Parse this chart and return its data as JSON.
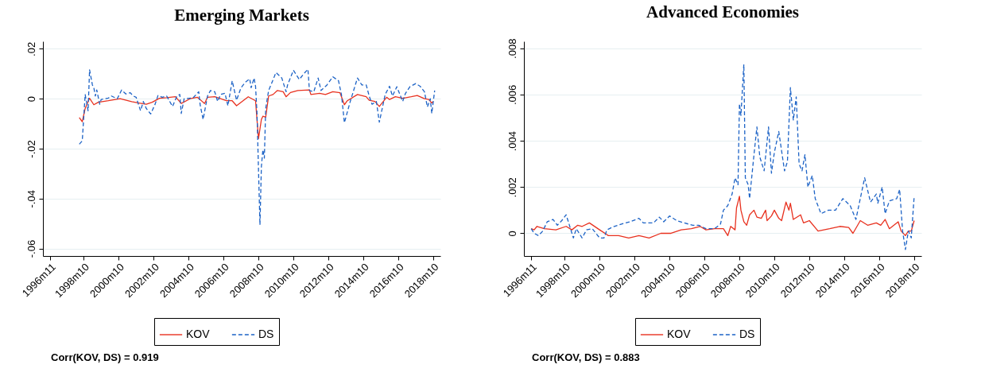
{
  "chart_data": [
    {
      "type": "line",
      "title": "Emerging Markets",
      "grid": "y",
      "legend": "bottom",
      "annotations": [
        "Corr(KOV, DS) = 0.919"
      ],
      "xlim": [
        "1996-06",
        "2019-03"
      ],
      "xticks": [
        {
          "value": "1996-11",
          "label": "1996m11"
        },
        {
          "value": "1998-10",
          "label": "1998m10"
        },
        {
          "value": "2000-10",
          "label": "2000m10"
        },
        {
          "value": "2002-10",
          "label": "2002m10"
        },
        {
          "value": "2004-10",
          "label": "2004m10"
        },
        {
          "value": "2006-10",
          "label": "2006m10"
        },
        {
          "value": "2008-10",
          "label": "2008m10"
        },
        {
          "value": "2010-10",
          "label": "2010m10"
        },
        {
          "value": "2012-10",
          "label": "2012m10"
        },
        {
          "value": "2014-10",
          "label": "2014m10"
        },
        {
          "value": "2016-10",
          "label": "2016m10"
        },
        {
          "value": "2018-10",
          "label": "2018m10"
        }
      ],
      "ylim": [
        -0.063,
        0.023
      ],
      "yticks": [
        {
          "value": -0.06,
          "label": "-.06"
        },
        {
          "value": -0.04,
          "label": "-.04"
        },
        {
          "value": -0.02,
          "label": "-.02"
        },
        0,
        {
          "value": 0.02,
          "label": ".02"
        }
      ],
      "series": [
        {
          "name": "KOV",
          "color": "#e8311f",
          "line_style": "solid",
          "x": [
            "1998-07",
            "1998-09",
            "1998-11",
            "1999-02",
            "1999-05",
            "1999-08",
            "2000-03",
            "2000-11",
            "2001-07",
            "2001-12",
            "2002-05",
            "2002-09",
            "2003-02",
            "2003-07",
            "2004-01",
            "2004-05",
            "2004-11",
            "2005-04",
            "2005-09",
            "2005-11",
            "2006-04",
            "2006-12",
            "2007-04",
            "2007-07",
            "2008-03",
            "2008-08",
            "2008-10",
            "2008-12",
            "2009-01",
            "2009-03",
            "2009-05",
            "2009-08",
            "2009-11",
            "2010-03",
            "2010-05",
            "2010-08",
            "2011-01",
            "2011-09",
            "2011-10",
            "2012-04",
            "2012-08",
            "2013-01",
            "2013-06",
            "2013-09",
            "2013-11",
            "2014-06",
            "2014-12",
            "2015-02",
            "2015-06",
            "2015-09",
            "2016-02",
            "2016-04",
            "2016-08",
            "2017-01",
            "2017-07",
            "2017-11",
            "2018-04",
            "2018-07",
            "2018-09",
            "2018-10"
          ],
          "values": [
            -0.0075,
            -0.0092,
            -0.0039,
            0.0002,
            -0.0024,
            -0.0014,
            -0.0008,
            0,
            -0.0012,
            -0.0017,
            -0.0022,
            -0.0014,
            0.0002,
            0.0004,
            0.0008,
            -0.0019,
            0,
            0.0006,
            -0.0019,
            0.0006,
            0.0008,
            -0.0008,
            -0.0008,
            -0.0028,
            0.0008,
            -0.0008,
            -0.016,
            -0.0083,
            -0.007,
            -0.0074,
            0.0011,
            0.0017,
            0.0033,
            0.0028,
            0.0008,
            0.0025,
            0.0033,
            0.0035,
            0.0017,
            0.0022,
            0.0017,
            0.0028,
            0.0024,
            -0.0024,
            -0.0008,
            0.0017,
            0.0008,
            -0.0006,
            -0.0011,
            -0.0031,
            0.0006,
            -0.0003,
            0.0008,
            0.0002,
            0.0008,
            0.0013,
            0,
            -0.0003,
            -0.0017,
            -0.0011
          ]
        },
        {
          "name": "DS",
          "color": "#1d63c6",
          "line_style": "dashed",
          "x": [
            "1998-07",
            "1998-09",
            "1998-11",
            "1999-01",
            "1999-02",
            "1999-04",
            "1999-05",
            "1999-06",
            "1999-07",
            "1999-09",
            "1999-10",
            "2000-03",
            "2000-05",
            "2000-09",
            "2000-12",
            "2001-03",
            "2001-06",
            "2001-08",
            "2001-10",
            "2002-01",
            "2002-03",
            "2002-05",
            "2002-08",
            "2002-11",
            "2003-01",
            "2003-04",
            "2003-07",
            "2003-11",
            "2004-02",
            "2004-04",
            "2004-05",
            "2004-07",
            "2005-01",
            "2005-05",
            "2005-06",
            "2005-08",
            "2005-11",
            "2006-01",
            "2006-04",
            "2006-06",
            "2006-08",
            "2006-11",
            "2007-01",
            "2007-04",
            "2007-07",
            "2007-10",
            "2008-01",
            "2008-04",
            "2008-05",
            "2008-07",
            "2008-08",
            "2008-09",
            "2008-11",
            "2008-12",
            "2009-01",
            "2009-02",
            "2009-03",
            "2009-05",
            "2009-07",
            "2009-10",
            "2010-02",
            "2010-05",
            "2010-06",
            "2010-10",
            "2011-02",
            "2011-05",
            "2011-08",
            "2011-09",
            "2011-12",
            "2012-03",
            "2012-05",
            "2012-09",
            "2013-01",
            "2013-05",
            "2013-07",
            "2013-09",
            "2014-01",
            "2014-06",
            "2014-09",
            "2014-12",
            "2015-02",
            "2015-04",
            "2015-07",
            "2015-09",
            "2016-01",
            "2016-04",
            "2016-06",
            "2016-09",
            "2017-01",
            "2017-03",
            "2017-06",
            "2017-10",
            "2018-01",
            "2018-04",
            "2018-06",
            "2018-08",
            "2018-09",
            "2018-11"
          ],
          "values": [
            -0.0182,
            -0.0169,
            0.0017,
            -0.0048,
            0.0116,
            0.0055,
            0.0044,
            0.0011,
            0.0035,
            -0.0022,
            -0.0003,
            0.0003,
            0.0011,
            0,
            0.0035,
            0.0019,
            0.0024,
            0.0011,
            0.0006,
            -0.0048,
            -0.0011,
            -0.0039,
            -0.0061,
            -0.0022,
            0.0013,
            0.0006,
            0.0011,
            -0.0031,
            0.0011,
            0.0017,
            -0.0059,
            0,
            0.0003,
            0.0028,
            -0.0025,
            -0.0083,
            0.0011,
            0.0033,
            0.0028,
            -0.0011,
            0.0017,
            0.0022,
            -0.0028,
            0.0072,
            -0.0006,
            0.0044,
            0.0066,
            0.008,
            0.0044,
            0.0083,
            0.005,
            -0.0061,
            -0.0505,
            -0.0271,
            -0.0204,
            -0.0238,
            -0.0039,
            0.0033,
            0.0061,
            0.0105,
            0.0083,
            0.0028,
            0.0055,
            0.0114,
            0.0077,
            0.0099,
            0.0118,
            0.0033,
            0.0028,
            0.0083,
            0.0033,
            0.0055,
            0.0088,
            0.0072,
            0.0017,
            -0.0096,
            -0.0011,
            0.0083,
            0.0055,
            0.0055,
            0.0011,
            -0.0022,
            -0.0011,
            -0.0094,
            0.0017,
            0.005,
            0.0011,
            0.0048,
            -0.0011,
            0.0022,
            0.0048,
            0.0061,
            0.005,
            0.0028,
            -0.0033,
            0,
            -0.0059,
            0.0033
          ]
        }
      ]
    },
    {
      "type": "line",
      "title": "Advanced Economies",
      "grid": "y",
      "legend": "bottom",
      "annotations": [
        "Corr(KOV, DS) = 0.883"
      ],
      "xlim": [
        "1996-06",
        "2019-03"
      ],
      "xticks": [
        {
          "value": "1996-11",
          "label": "1996m11"
        },
        {
          "value": "1998-10",
          "label": "1998m10"
        },
        {
          "value": "2000-10",
          "label": "2000m10"
        },
        {
          "value": "2002-10",
          "label": "2002m10"
        },
        {
          "value": "2004-10",
          "label": "2004m10"
        },
        {
          "value": "2006-10",
          "label": "2006m10"
        },
        {
          "value": "2008-10",
          "label": "2008m10"
        },
        {
          "value": "2010-10",
          "label": "2010m10"
        },
        {
          "value": "2012-10",
          "label": "2012m10"
        },
        {
          "value": "2014-10",
          "label": "2014m10"
        },
        {
          "value": "2016-10",
          "label": "2016m10"
        },
        {
          "value": "2018-10",
          "label": "2018m10"
        }
      ],
      "ylim": [
        -0.00098,
        0.0083
      ],
      "yticks": [
        0,
        {
          "value": 0.002,
          "label": ".002"
        },
        {
          "value": 0.004,
          "label": ".004"
        },
        {
          "value": 0.006,
          "label": ".006"
        },
        {
          "value": 0.008,
          "label": ".008"
        }
      ],
      "series": [
        {
          "name": "KOV",
          "color": "#e8311f",
          "line_style": "solid",
          "x": [
            "1996-11",
            "1997-01",
            "1997-03",
            "1997-08",
            "1998-04",
            "1998-11",
            "1999-03",
            "1999-07",
            "1999-10",
            "2000-03",
            "2000-10",
            "2001-04",
            "2001-11",
            "2002-06",
            "2003-01",
            "2003-08",
            "2004-04",
            "2004-11",
            "2005-06",
            "2006-01",
            "2006-07",
            "2006-11",
            "2007-05",
            "2007-11",
            "2008-02",
            "2008-04",
            "2008-07",
            "2008-08",
            "2008-10",
            "2008-11",
            "2009-01",
            "2009-03",
            "2009-05",
            "2009-08",
            "2009-10",
            "2010-01",
            "2010-04",
            "2010-05",
            "2010-08",
            "2010-10",
            "2011-01",
            "2011-03",
            "2011-06",
            "2011-08",
            "2011-09",
            "2011-11",
            "2012-04",
            "2012-06",
            "2012-10",
            "2013-04",
            "2013-12",
            "2014-07",
            "2015-01",
            "2015-04",
            "2015-09",
            "2016-02",
            "2016-08",
            "2016-11",
            "2017-02",
            "2017-05",
            "2017-11",
            "2018-01",
            "2018-04",
            "2018-06",
            "2018-08",
            "2018-10"
          ],
          "values": [
            0.0002,
            0.00015,
            0.0003,
            0.0002,
            0.00015,
            0.0003,
            0.00015,
            0.00035,
            0.0003,
            0.00045,
            0.00015,
            -0.0001,
            -0.0001,
            -0.0002,
            -0.0001,
            -0.0002,
            0,
            0,
            0.00015,
            0.0002,
            0.0003,
            0.00015,
            0.0002,
            0.0002,
            -0.0001,
            0.0003,
            0.00015,
            0.0011,
            0.0016,
            0.001,
            0.0005,
            0.00035,
            0.0008,
            0.001,
            0.0007,
            0.00065,
            0.001,
            0.00055,
            0.00075,
            0.001,
            0.00065,
            0.00055,
            0.00135,
            0.001,
            0.0013,
            0.0006,
            0.0008,
            0.00045,
            0.00055,
            0.0001,
            0.0002,
            0.0003,
            0.00025,
            0,
            0.00055,
            0.00035,
            0.00045,
            0.00035,
            0.0006,
            0.0002,
            0.0005,
            0.0001,
            -0.0001,
            0.0001,
            0.0001,
            0.00055
          ]
        },
        {
          "name": "DS",
          "color": "#1d63c6",
          "line_style": "dashed",
          "x": [
            "1996-11",
            "1997-01",
            "1997-04",
            "1997-07",
            "1997-10",
            "1998-02",
            "1998-05",
            "1998-08",
            "1998-11",
            "1999-01",
            "1999-04",
            "1999-06",
            "1999-10",
            "2000-01",
            "2000-05",
            "2000-10",
            "2001-01",
            "2001-03",
            "2001-08",
            "2002-01",
            "2002-07",
            "2003-01",
            "2003-04",
            "2003-11",
            "2004-03",
            "2004-06",
            "2004-10",
            "2005-03",
            "2005-08",
            "2006-02",
            "2006-06",
            "2006-11",
            "2007-05",
            "2007-09",
            "2007-11",
            "2008-02",
            "2008-05",
            "2008-07",
            "2008-09",
            "2008-10",
            "2008-11",
            "2009-01",
            "2009-02",
            "2009-04",
            "2009-05",
            "2009-08",
            "2009-10",
            "2009-12",
            "2010-03",
            "2010-06",
            "2010-08",
            "2010-10",
            "2011-01",
            "2011-05",
            "2011-07",
            "2011-09",
            "2011-11",
            "2012-01",
            "2012-03",
            "2012-05",
            "2012-07",
            "2012-09",
            "2012-12",
            "2013-02",
            "2013-06",
            "2013-11",
            "2014-04",
            "2014-09",
            "2015-02",
            "2015-06",
            "2015-12",
            "2016-04",
            "2016-08",
            "2016-09",
            "2016-12",
            "2017-02",
            "2017-05",
            "2017-10",
            "2017-12",
            "2018-02",
            "2018-04",
            "2018-06",
            "2018-08",
            "2018-10"
          ],
          "values": [
            0.0002,
            0,
            -0.0001,
            0.0001,
            0.0005,
            0.0006,
            0.00035,
            0.00055,
            0.0008,
            0.0004,
            -0.0002,
            0.0002,
            -0.0002,
            0.00015,
            0.0002,
            -0.0002,
            -0.0002,
            0.00015,
            0.0003,
            0.0004,
            0.0005,
            0.00065,
            0.00045,
            0.00045,
            0.0007,
            0.0005,
            0.00075,
            0.00055,
            0.00045,
            0.00035,
            0.00035,
            0.0002,
            0.0002,
            0.0004,
            0.001,
            0.0012,
            0.0017,
            0.0024,
            0.0021,
            0.0056,
            0.0051,
            0.0073,
            0.0024,
            0.0021,
            0.0015,
            0.0034,
            0.0046,
            0.0033,
            0.0027,
            0.0046,
            0.0026,
            0.0035,
            0.0044,
            0.0027,
            0.0031,
            0.0063,
            0.0049,
            0.0059,
            0.003,
            0.0027,
            0.0034,
            0.002,
            0.0025,
            0.0015,
            0.00085,
            0.001,
            0.001,
            0.0015,
            0.0012,
            0.0006,
            0.0024,
            0.00135,
            0.0017,
            0.0013,
            0.002,
            0.00085,
            0.0014,
            0.0015,
            0.0019,
            0.0001,
            -0.0007,
            0.0001,
            -0.0002,
            0.0016
          ]
        }
      ]
    }
  ]
}
